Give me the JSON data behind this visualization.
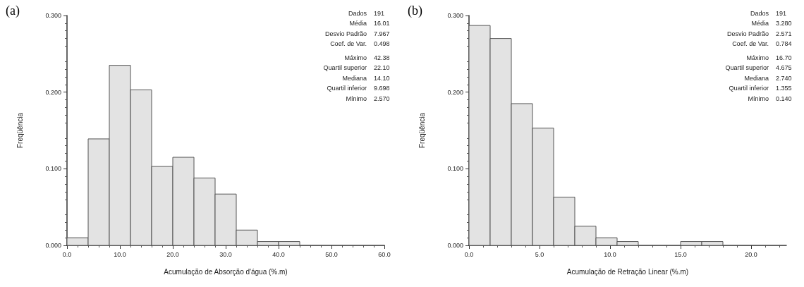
{
  "chart_data": [
    {
      "type": "histogram",
      "xlabel": "Acumulação de Absorção d'água (%.m)",
      "ylabel": "Freqüência",
      "color": "#e3e3e3",
      "bins": [
        0,
        4,
        8,
        12,
        16,
        20,
        24,
        28,
        32,
        36,
        40,
        44
      ],
      "values": [
        0.01,
        0.139,
        0.235,
        0.203,
        0.103,
        0.115,
        0.088,
        0.067,
        0.02,
        0.005,
        0.005
      ],
      "xlim": [
        0,
        60
      ],
      "xticks": [
        {
          "value": 0,
          "label": "0.0"
        },
        {
          "value": 10,
          "label": "10.0"
        },
        {
          "value": 20,
          "label": "20.0"
        },
        {
          "value": 30,
          "label": "30.0"
        },
        {
          "value": 40,
          "label": "40.0"
        },
        {
          "value": 50,
          "label": "50.0"
        },
        {
          "value": 60,
          "label": "60.0"
        }
      ],
      "ylim": [
        0,
        0.3
      ],
      "yticks": [
        {
          "value": 0,
          "label": "0.000"
        },
        {
          "value": 0.1,
          "label": "0.100"
        },
        {
          "value": 0.2,
          "label": "0.200"
        },
        {
          "value": 0.3,
          "label": "0.300"
        }
      ],
      "grid": false,
      "annotations": [
        "(a)",
        "Dados 191",
        "Média 16.01",
        "Desvio Padrão 7.967",
        "Coef. de Var. 0.498",
        "Máximo 42.38",
        "Quartil superior 22.10",
        "Mediana 14.10",
        "Quartil inferior 9.698",
        "Mínimo 2.570"
      ]
    },
    {
      "type": "histogram",
      "xlabel": "Acumulação de Retração Linear (%.m)",
      "ylabel": "Freqüência",
      "color": "#e3e3e3",
      "bins": [
        0,
        1.5,
        3,
        4.5,
        6,
        7.5,
        9,
        10.5,
        12,
        13.5,
        15,
        16.5,
        18
      ],
      "values": [
        0.287,
        0.27,
        0.185,
        0.153,
        0.063,
        0.025,
        0.01,
        0.005,
        0,
        0,
        0.005,
        0.005
      ],
      "xlim": [
        0,
        22.5
      ],
      "xticks": [
        {
          "value": 0,
          "label": "0.0"
        },
        {
          "value": 5,
          "label": "5.0"
        },
        {
          "value": 10,
          "label": "10.0"
        },
        {
          "value": 15,
          "label": "15.0"
        },
        {
          "value": 20,
          "label": "20.0"
        }
      ],
      "ylim": [
        0,
        0.3
      ],
      "yticks": [
        {
          "value": 0,
          "label": "0.000"
        },
        {
          "value": 0.1,
          "label": "0.100"
        },
        {
          "value": 0.2,
          "label": "0.200"
        },
        {
          "value": 0.3,
          "label": "0.300"
        }
      ],
      "grid": false,
      "annotations": [
        "(b)",
        "Dados 191",
        "Média 3.280",
        "Desvio Padrão 2.571",
        "Coef. de Var. 0.784",
        "Máximo 16.70",
        "Quartil superior 4.675",
        "Mediana 2.740",
        "Quartil inferior 1.355",
        "Mínimo 0.140"
      ]
    }
  ]
}
